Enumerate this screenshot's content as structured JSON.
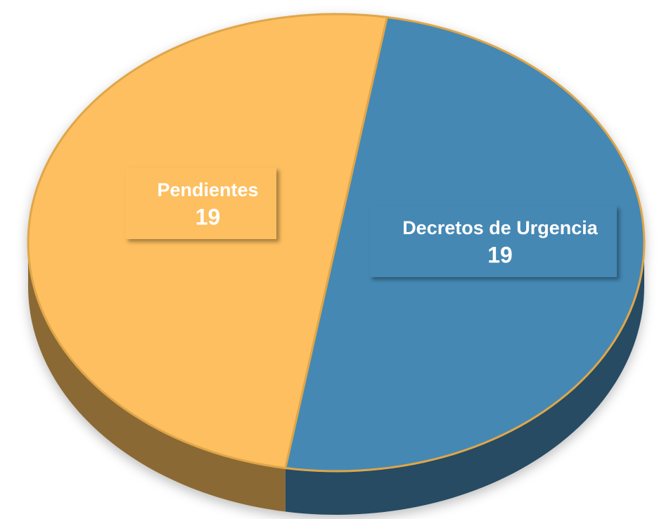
{
  "chart_data": {
    "type": "pie",
    "categories": [
      "Decretos de Urgencia",
      "Pendientes"
    ],
    "values": [
      19,
      19
    ],
    "colors": [
      "#4488b4",
      "#fdbf5f"
    ]
  }
}
